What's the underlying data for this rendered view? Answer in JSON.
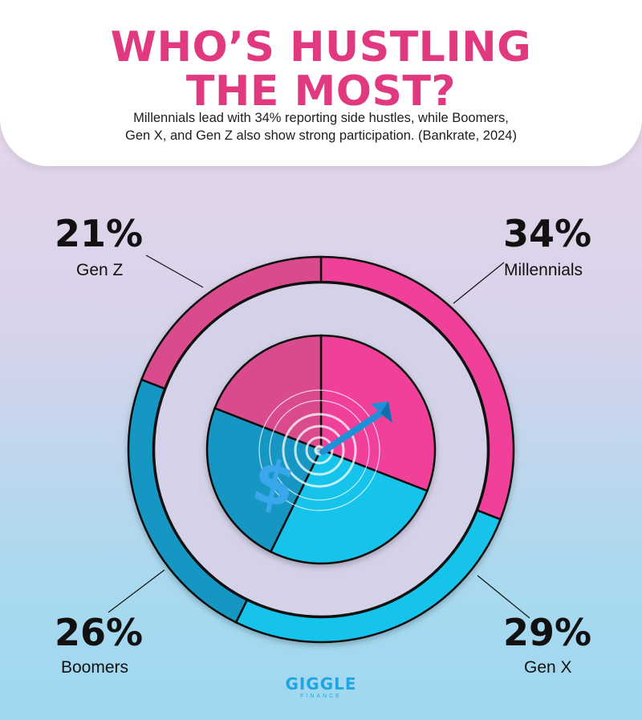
{
  "title_line1": "WHO’S HUSTLING",
  "title_line2": "THE MOST?",
  "subtitle_line1": "Millennials lead with 34% reporting side hustles, while Boomers,",
  "subtitle_line2": "Gen X, and Gen Z also show strong participation. (Bankrate, 2024)",
  "logo": {
    "main": "GIGGLE",
    "sub": "FINANCE"
  },
  "colors": {
    "title": "#e0397f",
    "millennials": "#f0419a",
    "gen_x": "#19c3ea",
    "boomers": "#1296c2",
    "gen_z": "#d94b8d"
  },
  "center_icons": [
    "target-icon",
    "arrow-icon",
    "dollar-icon"
  ],
  "chart_data": {
    "type": "pie",
    "categories": [
      "Millennials",
      "Gen X",
      "Boomers",
      "Gen Z"
    ],
    "values": [
      34,
      29,
      26,
      21
    ],
    "value_labels": [
      "34%",
      "29%",
      "26%",
      "21%"
    ],
    "title": "WHO’S HUSTLING THE MOST?"
  }
}
